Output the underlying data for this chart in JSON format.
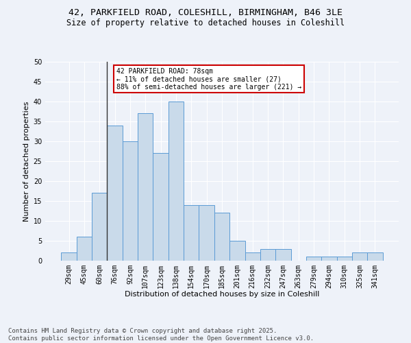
{
  "title1": "42, PARKFIELD ROAD, COLESHILL, BIRMINGHAM, B46 3LE",
  "title2": "Size of property relative to detached houses in Coleshill",
  "xlabel": "Distribution of detached houses by size in Coleshill",
  "ylabel": "Number of detached properties",
  "bar_color": "#c9daea",
  "bar_edge_color": "#5b9bd5",
  "background_color": "#eef2f9",
  "grid_color": "#ffffff",
  "categories": [
    "29sqm",
    "45sqm",
    "60sqm",
    "76sqm",
    "92sqm",
    "107sqm",
    "123sqm",
    "138sqm",
    "154sqm",
    "170sqm",
    "185sqm",
    "201sqm",
    "216sqm",
    "232sqm",
    "247sqm",
    "263sqm",
    "279sqm",
    "294sqm",
    "310sqm",
    "325sqm",
    "341sqm"
  ],
  "values": [
    2,
    6,
    17,
    34,
    30,
    37,
    27,
    40,
    14,
    14,
    12,
    5,
    2,
    3,
    3,
    0,
    1,
    1,
    1,
    2,
    2
  ],
  "ylim": [
    0,
    50
  ],
  "yticks": [
    0,
    5,
    10,
    15,
    20,
    25,
    30,
    35,
    40,
    45,
    50
  ],
  "annotation_text": "42 PARKFIELD ROAD: 78sqm\n← 11% of detached houses are smaller (27)\n88% of semi-detached houses are larger (221) →",
  "annotation_box_color": "#ffffff",
  "annotation_edge_color": "#cc0000",
  "vline_x_index": 3,
  "vline_color": "#333333",
  "footnote": "Contains HM Land Registry data © Crown copyright and database right 2025.\nContains public sector information licensed under the Open Government Licence v3.0.",
  "title_fontsize": 9.5,
  "subtitle_fontsize": 8.5,
  "annotation_fontsize": 7,
  "axis_label_fontsize": 8,
  "tick_fontsize": 7,
  "footnote_fontsize": 6.5
}
